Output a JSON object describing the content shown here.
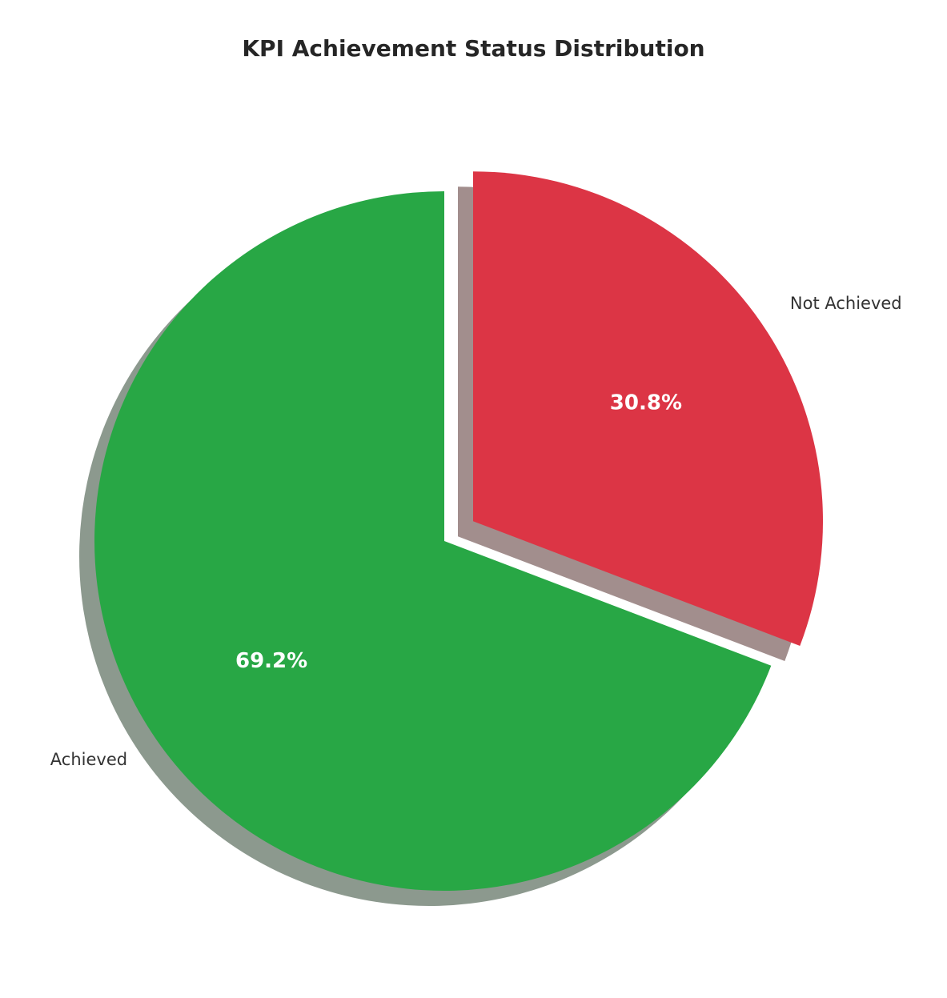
{
  "page": {
    "background": "#ffffff"
  },
  "chart_data": {
    "type": "pie",
    "title": "KPI Achievement Status Distribution",
    "labels": [
      "Achieved",
      "Not Achieved"
    ],
    "values": [
      69.2,
      30.8
    ],
    "pct_labels": [
      "69.2%",
      "30.8%"
    ],
    "colors": [
      "#28a745",
      "#dc3545"
    ],
    "shadow_colors": [
      "#8c998e",
      "#a28e8d"
    ],
    "explode": [
      0,
      0.1
    ],
    "startangle": 90,
    "counterclock": true,
    "shadow": true,
    "pctdistance": 0.6,
    "labeldistance": 1.1,
    "legend": "none",
    "axes": "off",
    "title_color": "#262626",
    "label_color": "#333333",
    "pct_color": "#ffffff"
  }
}
